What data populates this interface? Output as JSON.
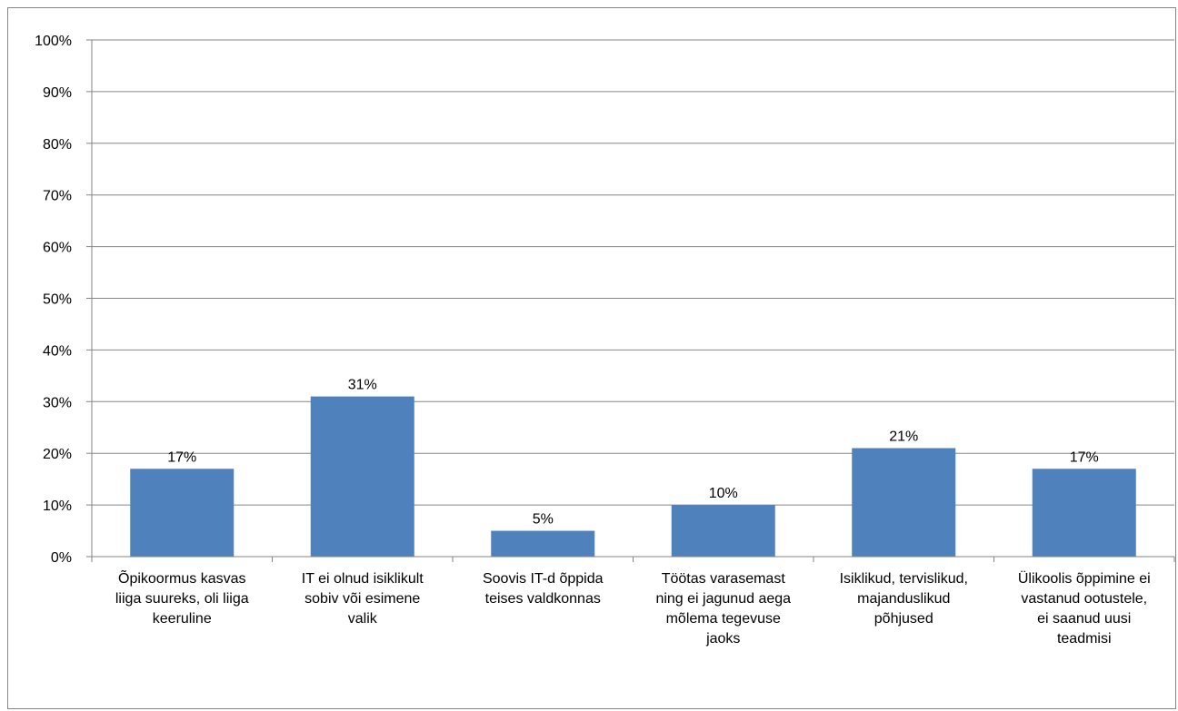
{
  "chart_data": {
    "type": "bar",
    "categories": [
      [
        "Õpikoormus kasvas",
        "liiga suureks, oli liiga",
        "keeruline"
      ],
      [
        "IT ei olnud isiklikult",
        "sobiv või esimene",
        "valik"
      ],
      [
        "Soovis IT-d õppida",
        "teises valdkonnas"
      ],
      [
        "Töötas varasemast",
        "ning ei jagunud aega",
        "mõlema tegevuse",
        "jaoks"
      ],
      [
        "Isiklikud, tervislikud,",
        "majanduslikud",
        "põhjused"
      ],
      [
        "Ülikoolis õppimine ei",
        "vastanud ootustele,",
        "ei saanud uusi",
        "teadmisi"
      ]
    ],
    "values": [
      17,
      31,
      5,
      10,
      21,
      17
    ],
    "data_labels": [
      "17%",
      "31%",
      "5%",
      "10%",
      "21%",
      "17%"
    ],
    "y_ticks": [
      "0%",
      "10%",
      "20%",
      "30%",
      "40%",
      "50%",
      "60%",
      "70%",
      "80%",
      "90%",
      "100%"
    ],
    "ylim": [
      0,
      100
    ],
    "grid": true,
    "bar_color": "#4F81BD",
    "grid_color": "#868686"
  }
}
